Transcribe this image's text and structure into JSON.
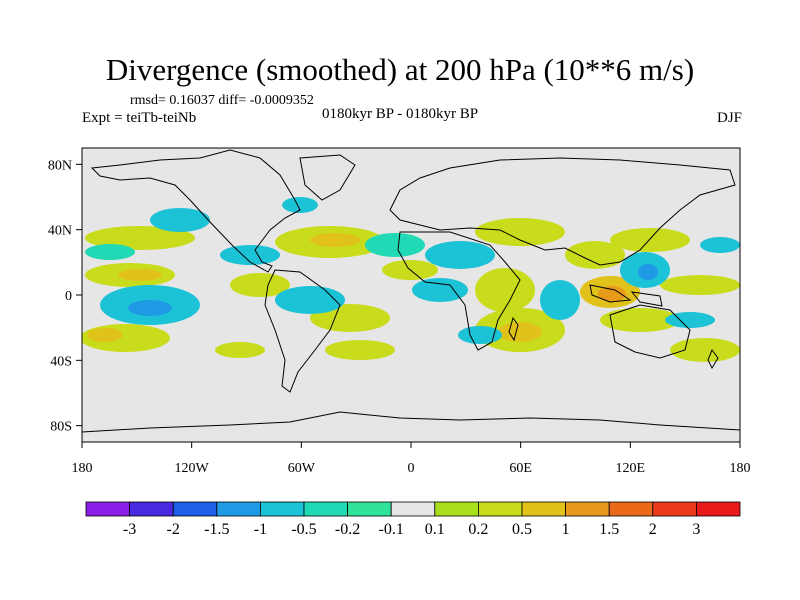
{
  "title": "Divergence (smoothed) at 200 hPa (10**6 m/s)",
  "stats": "rmsd= 0.16037 diff= -0.0009352",
  "experiment": "Expt = teiTb-teiNb",
  "period": "0180kyr BP - 0180kyr BP",
  "season": "DJF",
  "map": {
    "lon_ticks": [
      "180",
      "120W",
      "60W",
      "0",
      "60E",
      "120E",
      "180"
    ],
    "lat_ticks": [
      "80N",
      "40N",
      "0",
      "40S",
      "80S"
    ],
    "background_color": "#e6e6e6",
    "coastline_color": "#000000"
  },
  "colorbar": {
    "labels": [
      "-3",
      "-2",
      "-1.5",
      "-1",
      "-0.5",
      "-0.2",
      "-0.1",
      "0.1",
      "0.2",
      "0.5",
      "1",
      "1.5",
      "2",
      "3"
    ],
    "colors": [
      "#8a1ee6",
      "#4a2ae0",
      "#1f5ee6",
      "#1f9be6",
      "#1cc2d6",
      "#21d9b4",
      "#2fe39a",
      "#e6e6e6",
      "#a8e01e",
      "#c9dc1c",
      "#e0c21a",
      "#e89a1a",
      "#ea6a1a",
      "#ea3a1a",
      "#e81a1a"
    ]
  }
}
